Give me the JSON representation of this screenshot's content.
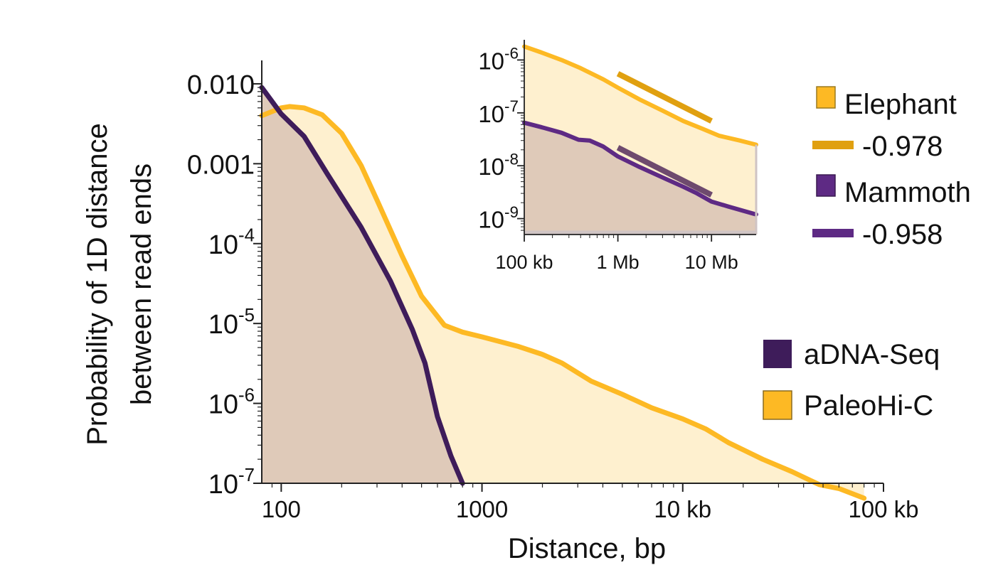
{
  "chart_data": [
    {
      "type": "area",
      "xlabel": "Distance, bp",
      "ylabel": [
        "Probability of 1D distance",
        "between read ends"
      ],
      "x_scale": "log",
      "y_scale": "log",
      "xlim": [
        80,
        100000
      ],
      "ylim": [
        1e-07,
        0.016
      ],
      "x_ticks": [
        {
          "value": 100,
          "label": "100"
        },
        {
          "value": 1000,
          "label": "1000"
        },
        {
          "value": 10000,
          "label": "10 kb"
        },
        {
          "value": 100000,
          "label": "100 kb"
        }
      ],
      "y_ticks": [
        {
          "value": 0.01,
          "base": "0.010",
          "exp": ""
        },
        {
          "value": 0.001,
          "base": "0.001",
          "exp": ""
        },
        {
          "value": 0.0001,
          "base": "10",
          "exp": "-4"
        },
        {
          "value": 1e-05,
          "base": "10",
          "exp": "-5"
        },
        {
          "value": 1e-06,
          "base": "10",
          "exp": "-6"
        },
        {
          "value": 1e-07,
          "base": "10",
          "exp": "-7"
        }
      ],
      "series": [
        {
          "name": "PaleoHi-C",
          "color": "#FDB924",
          "fill": "#FEF0CF",
          "x": [
            80,
            100,
            110,
            130,
            160,
            200,
            250,
            300,
            400,
            500,
            650,
            800,
            1000,
            1500,
            2000,
            2500,
            3500,
            5000,
            7000,
            10000,
            13000,
            17000,
            25000,
            35000,
            48000,
            60000,
            80000
          ],
          "y": [
            0.004,
            0.005,
            0.0052,
            0.005,
            0.0041,
            0.0024,
            0.00095,
            0.00035,
            7e-05,
            2.2e-05,
            9.5e-06,
            7.8e-06,
            6.8e-06,
            5.2e-06,
            4.1e-06,
            3.2e-06,
            1.9e-06,
            1.3e-06,
            8.8e-07,
            6.4e-07,
            4.8e-07,
            3.2e-07,
            2e-07,
            1.4e-07,
            9.6e-08,
            8.6e-08,
            6.5e-08
          ]
        },
        {
          "name": "aDNA-Seq",
          "color": "#3E1C5A",
          "fill": "#DFCAB9",
          "x": [
            80,
            100,
            130,
            170,
            250,
            350,
            450,
            520,
            600,
            700,
            800
          ],
          "y": [
            0.009,
            0.0042,
            0.0022,
            0.00074,
            0.00016,
            3.4e-05,
            8.4e-06,
            3.2e-06,
            6.8e-07,
            2.2e-07,
            1e-07
          ]
        }
      ],
      "legend": {
        "position": "right",
        "items": [
          {
            "label": "aDNA-Seq",
            "color": "#3E1C5A"
          },
          {
            "label": "PaleoHi-C",
            "color": "#FDB924"
          }
        ]
      }
    },
    {
      "type": "area",
      "inset": true,
      "x_scale": "log",
      "y_scale": "log",
      "xlim": [
        100000,
        30000000
      ],
      "ylim": [
        5e-10,
        2e-06
      ],
      "x_ticks": [
        {
          "value": 100000,
          "label": "100 kb"
        },
        {
          "value": 1000000,
          "label": "1 Mb"
        },
        {
          "value": 10000000,
          "label": "10 Mb"
        }
      ],
      "y_ticks": [
        {
          "value": 1e-06,
          "base": "10",
          "exp": "-6"
        },
        {
          "value": 1e-07,
          "base": "10",
          "exp": "-7"
        },
        {
          "value": 1e-08,
          "base": "10",
          "exp": "-8"
        },
        {
          "value": 1e-09,
          "base": "10",
          "exp": "-9"
        }
      ],
      "series": [
        {
          "name": "Elephant",
          "color": "#FDB924",
          "fill": "#FEF0CF",
          "x": [
            100000,
            150000,
            250000,
            400000,
            700000,
            1000000,
            1700000,
            3000000,
            5000000,
            8000000,
            12000000,
            20000000,
            30000000
          ],
          "y": [
            1.8e-06,
            1.4e-06,
            1e-06,
            7e-07,
            4.3e-07,
            3e-07,
            1.8e-07,
            1.1e-07,
            7e-08,
            5e-08,
            3.7e-08,
            3e-08,
            2.5e-08
          ]
        },
        {
          "name": "Mammoth",
          "color": "#5E2A84",
          "fill": "#DFCAB9",
          "x": [
            100000,
            150000,
            250000,
            380000,
            500000,
            700000,
            1000000,
            1700000,
            3000000,
            5000000,
            7000000,
            10000000,
            15000000,
            22000000,
            30000000
          ],
          "y": [
            6.5e-08,
            5.4e-08,
            4.2e-08,
            3.1e-08,
            3e-08,
            2.3e-08,
            1.5e-08,
            9.5e-09,
            6e-09,
            4e-09,
            3e-09,
            2.1e-09,
            1.7e-09,
            1.4e-09,
            1.2e-09
          ]
        }
      ],
      "fit_lines": [
        {
          "name": "Elephant",
          "slope": -0.978,
          "color": "#E0A010",
          "x": [
            1000000,
            10000000
          ],
          "y": [
            5.5e-07,
            7e-08
          ]
        },
        {
          "name": "Mammoth",
          "slope": -0.958,
          "color": "#6E4A6E",
          "x": [
            1000000,
            10000000
          ],
          "y": [
            2.2e-08,
            2.8e-09
          ]
        }
      ],
      "legend": {
        "position": "right",
        "items": [
          {
            "label": "Elephant",
            "color": "#FDB924",
            "kind": "square"
          },
          {
            "label": "-0.978",
            "color": "#E0A010",
            "kind": "line"
          },
          {
            "label": "Mammoth",
            "color": "#5E2A84",
            "kind": "square"
          },
          {
            "label": "-0.958",
            "color": "#5E2A84",
            "kind": "line"
          }
        ]
      }
    }
  ]
}
